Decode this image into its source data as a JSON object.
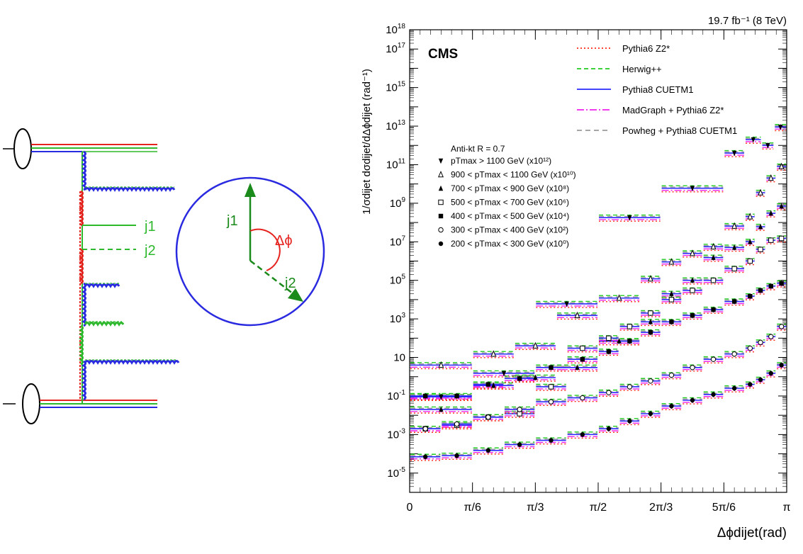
{
  "left_diagram": {
    "jet_labels": [
      "j1",
      "j2"
    ],
    "delta_phi_label": "Δϕ",
    "colors": {
      "red": "#e52420",
      "green": "#2db82d",
      "blue": "#2a2ae0",
      "arrow": "#1a8a1a"
    }
  },
  "chart_data": {
    "type": "scatter",
    "title": "CMS",
    "luminosity_label": "19.7 fb⁻¹ (8 TeV)",
    "ylabel": "1/σdijet dσdijet/dΔϕdijet (rad⁻¹)",
    "xlabel": "Δϕdijet(rad)",
    "xlim": [
      0,
      3.14159
    ],
    "ylim": [
      1e-06,
      1e+18
    ],
    "log_y": true,
    "x_ticks": [
      {
        "v": 0,
        "label": "0"
      },
      {
        "v": 0.5236,
        "label": "π/6"
      },
      {
        "v": 1.0472,
        "label": "π/3"
      },
      {
        "v": 1.5708,
        "label": "π/2"
      },
      {
        "v": 2.0944,
        "label": "2π/3"
      },
      {
        "v": 2.618,
        "label": "5π/6"
      },
      {
        "v": 3.14159,
        "label": "π"
      }
    ],
    "y_tick_labels": [
      {
        "exp": -5,
        "label": "10-5"
      },
      {
        "exp": -3,
        "label": "10-3"
      },
      {
        "exp": -1,
        "label": "10-1"
      },
      {
        "exp": 1,
        "label": "10"
      },
      {
        "exp": 3,
        "label": "103"
      },
      {
        "exp": 5,
        "label": "105"
      },
      {
        "exp": 7,
        "label": "107"
      },
      {
        "exp": 9,
        "label": "109"
      },
      {
        "exp": 11,
        "label": "1011"
      },
      {
        "exp": 13,
        "label": "1013"
      },
      {
        "exp": 15,
        "label": "1015"
      },
      {
        "exp": 17,
        "label": "1017"
      },
      {
        "exp": 18,
        "label": "1018"
      }
    ],
    "legend_position": "top-right",
    "models": [
      {
        "name": "Pythia6 Z2*",
        "color": "#ff2a1a",
        "dash": "2,3",
        "factor": 0.65
      },
      {
        "name": "Herwig++",
        "color": "#22cc22",
        "dash": "6,4",
        "factor": 1.35
      },
      {
        "name": "Pythia8 CUETM1",
        "color": "#2a2aff",
        "dash": "",
        "factor": 1.0
      },
      {
        "name": "MadGraph + Pythia6 Z2*",
        "color": "#ee22ee",
        "dash": "10,3,2,3",
        "factor": 0.78
      },
      {
        "name": "Powheg + Pythia8 CUETM1",
        "color": "#999999",
        "dash": "7,5",
        "factor": 1.15
      }
    ],
    "algorithm_label": "Anti-kt R = 0.7",
    "series": [
      {
        "name": "pTmax > 1100 GeV (x10¹²)",
        "marker": "tri-down",
        "scale_exp": 12,
        "bins": [
          [
            0,
            0.524
          ],
          [
            0.524,
            1.047
          ],
          [
            1.047,
            1.571
          ],
          [
            1.571,
            2.094
          ],
          [
            2.094,
            2.618
          ],
          [
            2.618,
            2.793
          ],
          [
            2.793,
            2.932
          ],
          [
            2.932,
            3.037
          ],
          [
            3.037,
            3.142
          ]
        ],
        "values": [
          0.09,
          1.5,
          6000.0,
          180000000.0,
          6000000000.0,
          400000000000.0,
          2000000000000.0,
          1000000000000.0,
          9000000000000.0
        ]
      },
      {
        "name": "900 < pTmax < 1100 GeV (x10¹⁰)",
        "marker": "tri-open",
        "scale_exp": 10,
        "bins": [
          [
            0,
            0.524
          ],
          [
            0.524,
            0.873
          ],
          [
            0.873,
            1.222
          ],
          [
            1.222,
            1.571
          ],
          [
            1.571,
            1.92
          ],
          [
            1.92,
            2.094
          ],
          [
            2.094,
            2.269
          ],
          [
            2.269,
            2.443
          ],
          [
            2.443,
            2.618
          ],
          [
            2.618,
            2.793
          ],
          [
            2.793,
            2.88
          ],
          [
            2.88,
            2.967
          ],
          [
            2.967,
            3.054
          ],
          [
            3.054,
            3.142
          ]
        ],
        "values": [
          4.0,
          15.0,
          40.0,
          1500.0,
          12000.0,
          120000.0,
          900000.0,
          2500000.0,
          5500000.0,
          65000000.0,
          200000000.0,
          3500000000.0,
          20000000000.0,
          80000000000.0
        ]
      },
      {
        "name": "700 < pTmax < 900 GeV (x10⁸)",
        "marker": "tri-filled",
        "scale_exp": 8,
        "bins": [
          [
            0,
            0.524
          ],
          [
            0.524,
            0.873
          ],
          [
            0.873,
            1.222
          ],
          [
            1.222,
            1.571
          ],
          [
            1.571,
            1.92
          ],
          [
            1.92,
            2.094
          ],
          [
            2.094,
            2.269
          ],
          [
            2.269,
            2.443
          ],
          [
            2.443,
            2.618
          ],
          [
            2.618,
            2.793
          ],
          [
            2.793,
            2.88
          ],
          [
            2.88,
            2.967
          ],
          [
            2.967,
            3.054
          ],
          [
            3.054,
            3.142
          ]
        ],
        "values": [
          0.02,
          0.35,
          0.9,
          3.0,
          70.0,
          700.0,
          20000.0,
          100000.0,
          1500000.0,
          5000000.0,
          10000000.0,
          60000000.0,
          300000000.0,
          700000000.0
        ]
      },
      {
        "name": "500 < pTmax < 700 GeV (x10⁶)",
        "marker": "square-open",
        "scale_exp": 6,
        "bins": [
          [
            0,
            0.262
          ],
          [
            0.262,
            0.524
          ],
          [
            0.524,
            0.785
          ],
          [
            0.785,
            1.047
          ],
          [
            1.047,
            1.309
          ],
          [
            1.309,
            1.571
          ],
          [
            1.571,
            1.746
          ],
          [
            1.746,
            1.92
          ],
          [
            1.92,
            2.094
          ],
          [
            2.094,
            2.269
          ],
          [
            2.269,
            2.443
          ],
          [
            2.443,
            2.618
          ],
          [
            2.618,
            2.793
          ],
          [
            2.793,
            2.88
          ],
          [
            2.88,
            2.967
          ],
          [
            2.967,
            3.054
          ],
          [
            3.054,
            3.142
          ]
        ],
        "values": [
          0.002,
          0.003,
          0.008,
          0.012,
          0.3,
          30.0,
          100.0,
          400.0,
          2000.0,
          10000.0,
          30000.0,
          100000.0,
          400000.0,
          1000000.0,
          4000000.0,
          12000000.0,
          15000000.0
        ]
      },
      {
        "name": "400 < pTmax < 500 GeV (x10⁴)",
        "marker": "square-filled",
        "scale_exp": 4,
        "bins": [
          [
            0,
            0.262
          ],
          [
            0.262,
            0.524
          ],
          [
            0.524,
            0.785
          ],
          [
            0.785,
            1.047
          ],
          [
            1.047,
            1.309
          ],
          [
            1.309,
            1.571
          ],
          [
            1.571,
            1.746
          ],
          [
            1.746,
            1.92
          ],
          [
            1.92,
            2.094
          ],
          [
            2.094,
            2.269
          ],
          [
            2.269,
            2.443
          ],
          [
            2.443,
            2.618
          ],
          [
            2.618,
            2.793
          ],
          [
            2.793,
            2.88
          ],
          [
            2.88,
            2.967
          ],
          [
            2.967,
            3.054
          ],
          [
            3.054,
            3.142
          ]
        ],
        "values": [
          0.1,
          0.1,
          0.4,
          0.8,
          3.0,
          8.0,
          20.0,
          70.0,
          200.0,
          700.0,
          1500.0,
          3000.0,
          8000.0,
          15000.0,
          30000.0,
          50000.0,
          70000.0
        ]
      },
      {
        "name": "300 < pTmax < 400 GeV (x10²)",
        "marker": "circle-open",
        "scale_exp": 2,
        "bins": [
          [
            0,
            0.262
          ],
          [
            0.262,
            0.524
          ],
          [
            0.524,
            0.785
          ],
          [
            0.785,
            1.047
          ],
          [
            1.047,
            1.309
          ],
          [
            1.309,
            1.571
          ],
          [
            1.571,
            1.746
          ],
          [
            1.746,
            1.92
          ],
          [
            1.92,
            2.094
          ],
          [
            2.094,
            2.269
          ],
          [
            2.269,
            2.443
          ],
          [
            2.443,
            2.618
          ],
          [
            2.618,
            2.793
          ],
          [
            2.793,
            2.88
          ],
          [
            2.88,
            2.967
          ],
          [
            2.967,
            3.054
          ],
          [
            3.054,
            3.142
          ]
        ],
        "values": [
          0.002,
          0.0035,
          0.008,
          0.02,
          0.05,
          0.08,
          0.15,
          0.3,
          0.6,
          1.2,
          3.0,
          8.0,
          15.0,
          30.0,
          60.0,
          120.0,
          400.0
        ]
      },
      {
        "name": "200 < pTmax < 300 GeV (x10⁰)",
        "marker": "circle-filled",
        "scale_exp": 0,
        "bins": [
          [
            0,
            0.262
          ],
          [
            0.262,
            0.524
          ],
          [
            0.524,
            0.785
          ],
          [
            0.785,
            1.047
          ],
          [
            1.047,
            1.309
          ],
          [
            1.309,
            1.571
          ],
          [
            1.571,
            1.746
          ],
          [
            1.746,
            1.92
          ],
          [
            1.92,
            2.094
          ],
          [
            2.094,
            2.269
          ],
          [
            2.269,
            2.443
          ],
          [
            2.443,
            2.618
          ],
          [
            2.618,
            2.793
          ],
          [
            2.793,
            2.88
          ],
          [
            2.88,
            2.967
          ],
          [
            2.967,
            3.054
          ],
          [
            3.054,
            3.142
          ]
        ],
        "values": [
          7e-05,
          8e-05,
          0.00015,
          0.0003,
          0.0005,
          0.001,
          0.002,
          0.005,
          0.012,
          0.03,
          0.06,
          0.12,
          0.25,
          0.4,
          0.7,
          1.5,
          4.0
        ]
      }
    ]
  }
}
